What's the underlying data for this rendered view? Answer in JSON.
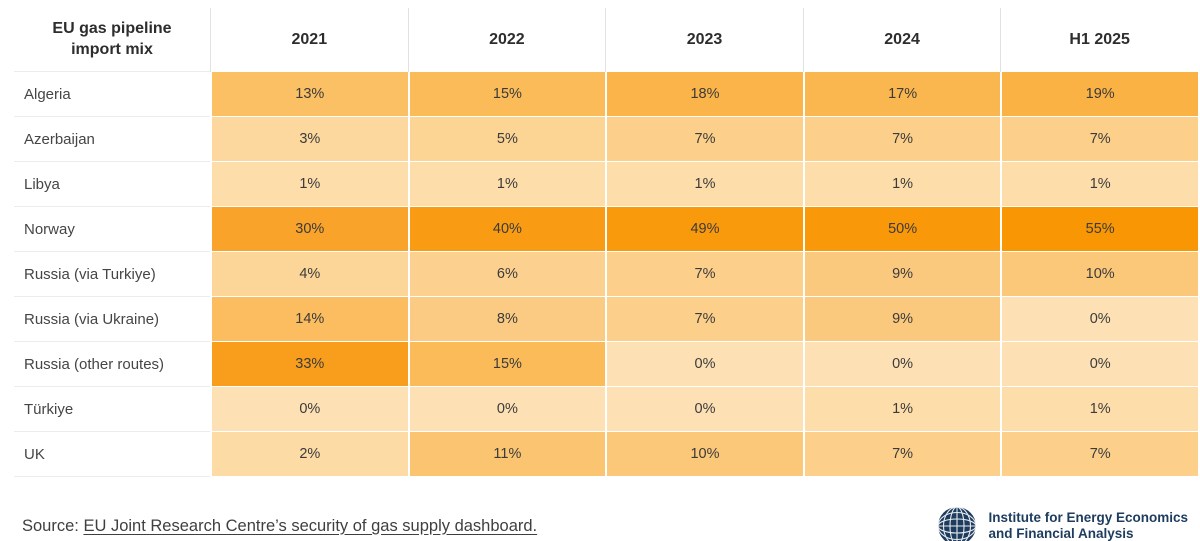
{
  "table": {
    "corner_header": "EU gas pipeline\nimport mix",
    "columns": [
      "2021",
      "2022",
      "2023",
      "2024",
      "H1 2025"
    ],
    "rows": [
      {
        "label": "Algeria",
        "values": [
          "13%",
          "15%",
          "18%",
          "17%",
          "19%"
        ],
        "colors": [
          "#FBBF64",
          "#FBBB59",
          "#FAB449",
          "#FAB64F",
          "#FAB244"
        ]
      },
      {
        "label": "Azerbaijan",
        "values": [
          "3%",
          "5%",
          "7%",
          "7%",
          "7%"
        ],
        "colors": [
          "#FCD89E",
          "#FCD494",
          "#FCCF8A",
          "#FCCF8A",
          "#FCCF8A"
        ]
      },
      {
        "label": "Libya",
        "values": [
          "1%",
          "1%",
          "1%",
          "1%",
          "1%"
        ],
        "colors": [
          "#FDDEAB",
          "#FDDEAB",
          "#FDDEAB",
          "#FDDEAB",
          "#FDDEAB"
        ]
      },
      {
        "label": "Norway",
        "values": [
          "30%",
          "40%",
          "49%",
          "50%",
          "55%"
        ],
        "colors": [
          "#FAA32B",
          "#F99C13",
          "#F9990C",
          "#F99809",
          "#F89603"
        ]
      },
      {
        "label": "Russia (via Turkiye)",
        "values": [
          "4%",
          "6%",
          "7%",
          "9%",
          "10%"
        ],
        "colors": [
          "#FCD699",
          "#FCD18F",
          "#FCCF8A",
          "#FBC97E",
          "#FBC778"
        ]
      },
      {
        "label": "Russia (via Ukraine)",
        "values": [
          "14%",
          "8%",
          "7%",
          "9%",
          "0%"
        ],
        "colors": [
          "#FBBD5F",
          "#FCCB83",
          "#FCCF8A",
          "#FBC97E",
          "#FDE1B4"
        ]
      },
      {
        "label": "Russia (other routes)",
        "values": [
          "33%",
          "15%",
          "0%",
          "0%",
          "0%"
        ],
        "colors": [
          "#F99E1C",
          "#FBBB59",
          "#FDE1B4",
          "#FDE1B4",
          "#FDE1B4"
        ]
      },
      {
        "label": "Türkiye",
        "values": [
          "0%",
          "0%",
          "0%",
          "1%",
          "1%"
        ],
        "colors": [
          "#FDE1B4",
          "#FDE1B4",
          "#FDE1B4",
          "#FDDEAB",
          "#FDDEAB"
        ]
      },
      {
        "label": "UK",
        "values": [
          "2%",
          "11%",
          "10%",
          "7%",
          "7%"
        ],
        "colors": [
          "#FDDBA4",
          "#FBC471",
          "#FBC778",
          "#FCCF8A",
          "#FCCF8A"
        ]
      }
    ]
  },
  "footer": {
    "source_prefix": "Source: ",
    "source_link": "EU Joint Research Centre’s security of gas supply dashboard.",
    "logo_line1": "Institute for Energy Economics",
    "logo_line2": "and Financial Analysis",
    "logo_color": "#1d3c5e"
  },
  "chart_data": {
    "type": "heatmap",
    "title": "EU gas pipeline import mix",
    "columns": [
      "2021",
      "2022",
      "2023",
      "2024",
      "H1 2025"
    ],
    "rows": [
      "Algeria",
      "Azerbaijan",
      "Libya",
      "Norway",
      "Russia (via Turkiye)",
      "Russia (via Ukraine)",
      "Russia (other routes)",
      "Türkiye",
      "UK"
    ],
    "values_percent": [
      [
        13,
        15,
        18,
        17,
        19
      ],
      [
        3,
        5,
        7,
        7,
        7
      ],
      [
        1,
        1,
        1,
        1,
        1
      ],
      [
        30,
        40,
        49,
        50,
        55
      ],
      [
        4,
        6,
        7,
        9,
        10
      ],
      [
        14,
        8,
        7,
        9,
        0
      ],
      [
        33,
        15,
        0,
        0,
        0
      ],
      [
        0,
        0,
        0,
        1,
        1
      ],
      [
        2,
        11,
        10,
        7,
        7
      ]
    ],
    "unit": "%",
    "color_scale": {
      "min_value_color": "#FDE1B4",
      "max_value_color": "#F89603",
      "min": 0,
      "max": 55
    },
    "legend": "none",
    "source": "EU Joint Research Centre’s security of gas supply dashboard."
  }
}
